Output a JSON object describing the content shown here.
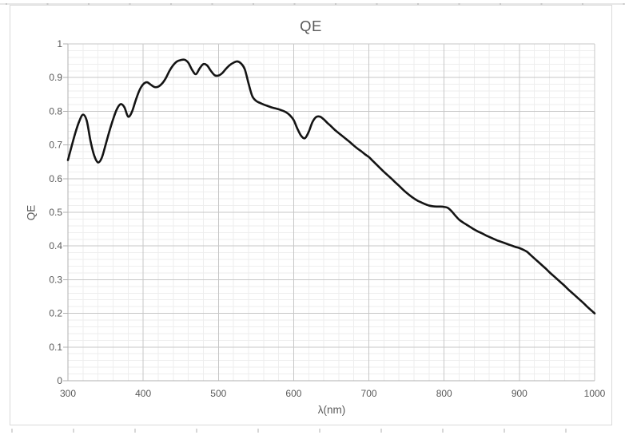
{
  "chart": {
    "title": "QE",
    "x_axis": {
      "label": "λ(nm)",
      "min": 300,
      "max": 1000,
      "major_step": 100,
      "minor_step": 20,
      "tick_labels": [
        "300",
        "400",
        "500",
        "600",
        "700",
        "800",
        "900",
        "1000"
      ]
    },
    "y_axis": {
      "label": "QE",
      "min": 0,
      "max": 1,
      "major_step": 0.1,
      "minor_step": 0.02,
      "tick_labels": [
        "0",
        "0.1",
        "0.2",
        "0.3",
        "0.4",
        "0.5",
        "0.6",
        "0.7",
        "0.8",
        "0.9",
        "1"
      ]
    },
    "colors": {
      "curve": "#141414",
      "grid_major": "#c7c7c7",
      "grid_minor": "#eeeeee",
      "axis": "#b0b0b0",
      "text": "#595959",
      "frame_border": "#d9d9d9"
    }
  },
  "chart_data": {
    "type": "line",
    "title": "QE",
    "xlabel": "λ(nm)",
    "ylabel": "QE",
    "xlim": [
      300,
      1000
    ],
    "ylim": [
      0,
      1
    ],
    "grid": "major and minor gridlines, light gray",
    "legend": "none",
    "series": [
      {
        "name": "QE",
        "color": "#141414",
        "smooth": true,
        "x": [
          300,
          305,
          310,
          315,
          320,
          325,
          330,
          335,
          340,
          345,
          350,
          355,
          360,
          365,
          370,
          375,
          380,
          385,
          390,
          395,
          400,
          405,
          410,
          415,
          420,
          425,
          430,
          435,
          440,
          445,
          450,
          455,
          460,
          465,
          470,
          475,
          480,
          485,
          490,
          495,
          500,
          505,
          510,
          515,
          520,
          525,
          530,
          535,
          540,
          545,
          550,
          555,
          560,
          565,
          570,
          575,
          580,
          585,
          590,
          595,
          600,
          605,
          610,
          615,
          620,
          625,
          630,
          635,
          640,
          645,
          650,
          655,
          660,
          665,
          670,
          675,
          680,
          685,
          690,
          695,
          700,
          705,
          710,
          715,
          720,
          725,
          730,
          735,
          740,
          745,
          750,
          755,
          760,
          765,
          770,
          775,
          780,
          785,
          790,
          795,
          800,
          805,
          810,
          815,
          820,
          825,
          830,
          835,
          840,
          845,
          850,
          855,
          860,
          865,
          870,
          875,
          880,
          885,
          890,
          895,
          900,
          905,
          910,
          915,
          920,
          925,
          930,
          935,
          940,
          945,
          950,
          955,
          960,
          965,
          970,
          975,
          980,
          985,
          990,
          995,
          1000
        ],
        "y": [
          0.655,
          0.697,
          0.737,
          0.77,
          0.79,
          0.772,
          0.712,
          0.668,
          0.648,
          0.662,
          0.7,
          0.74,
          0.776,
          0.806,
          0.821,
          0.812,
          0.784,
          0.798,
          0.832,
          0.862,
          0.88,
          0.886,
          0.879,
          0.872,
          0.873,
          0.882,
          0.898,
          0.92,
          0.937,
          0.948,
          0.952,
          0.953,
          0.944,
          0.923,
          0.91,
          0.927,
          0.94,
          0.936,
          0.92,
          0.907,
          0.906,
          0.913,
          0.926,
          0.937,
          0.944,
          0.948,
          0.942,
          0.925,
          0.883,
          0.845,
          0.831,
          0.825,
          0.82,
          0.816,
          0.812,
          0.809,
          0.806,
          0.802,
          0.797,
          0.788,
          0.774,
          0.748,
          0.727,
          0.72,
          0.739,
          0.768,
          0.783,
          0.784,
          0.776,
          0.765,
          0.755,
          0.744,
          0.735,
          0.726,
          0.717,
          0.708,
          0.698,
          0.689,
          0.681,
          0.672,
          0.664,
          0.653,
          0.642,
          0.631,
          0.62,
          0.61,
          0.6,
          0.589,
          0.579,
          0.568,
          0.558,
          0.549,
          0.541,
          0.534,
          0.529,
          0.524,
          0.52,
          0.518,
          0.517,
          0.517,
          0.516,
          0.513,
          0.503,
          0.49,
          0.478,
          0.47,
          0.463,
          0.456,
          0.449,
          0.443,
          0.438,
          0.432,
          0.427,
          0.422,
          0.417,
          0.413,
          0.409,
          0.405,
          0.401,
          0.397,
          0.394,
          0.389,
          0.383,
          0.373,
          0.363,
          0.353,
          0.343,
          0.333,
          0.322,
          0.312,
          0.302,
          0.292,
          0.282,
          0.271,
          0.261,
          0.251,
          0.241,
          0.231,
          0.22,
          0.21,
          0.2
        ]
      }
    ]
  }
}
